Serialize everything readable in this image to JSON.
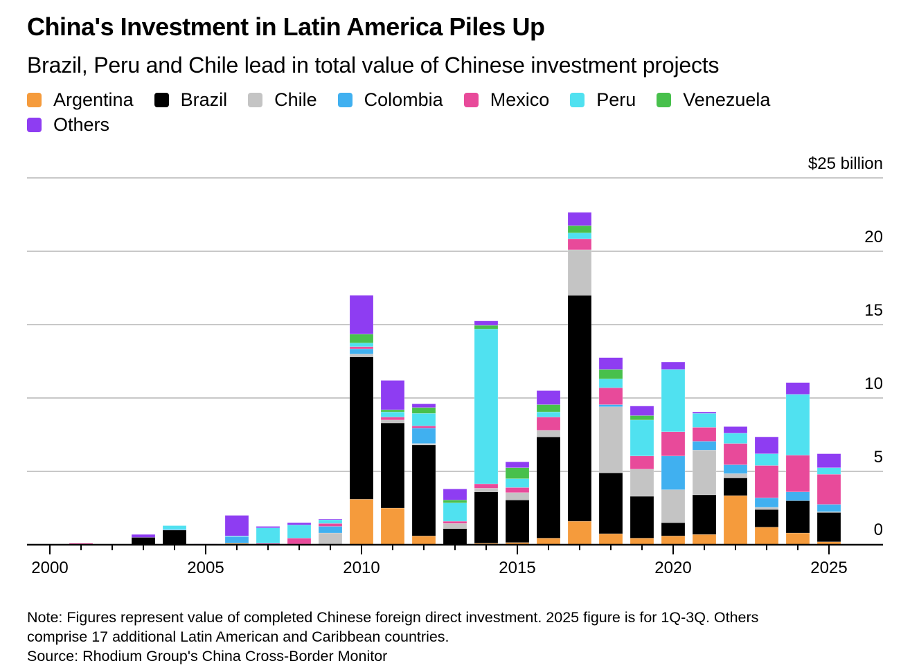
{
  "header": {
    "title": "China's Investment in Latin America Piles Up",
    "subtitle": "Brazil, Peru and Chile lead in total value of Chinese investment projects"
  },
  "footer": {
    "note_line1": "Note: Figures represent value of completed Chinese foreign direct investment. 2025 figure is for 1Q-3Q. Others",
    "note_line2": "comprise 17 additional Latin American and Caribbean countries.",
    "source": "Source: Rhodium Group's China Cross-Border Monitor"
  },
  "chart_data": {
    "type": "bar",
    "stacked": true,
    "title": "China's Investment in Latin America Piles Up",
    "subtitle": "Brazil, Peru and Chile lead in total value of Chinese investment projects",
    "xlabel": "",
    "ylabel": "",
    "y_unit_label": "$25 billion",
    "ylim": [
      0,
      25
    ],
    "yticks": [
      0,
      5,
      10,
      15,
      20,
      25
    ],
    "ytick_labels": [
      "0",
      "5",
      "10",
      "15",
      "20",
      "$25 billion"
    ],
    "xticks_labeled": [
      2000,
      2005,
      2010,
      2015,
      2020,
      2025
    ],
    "grid": true,
    "legend_position": "top-left",
    "categories": [
      2000,
      2001,
      2002,
      2003,
      2004,
      2005,
      2006,
      2007,
      2008,
      2009,
      2010,
      2011,
      2012,
      2013,
      2014,
      2015,
      2016,
      2017,
      2018,
      2019,
      2020,
      2021,
      2022,
      2023,
      2024,
      2025
    ],
    "series": [
      {
        "name": "Argentina",
        "color": "#f59b3c",
        "values": [
          0,
          0,
          0,
          0,
          0,
          0,
          0.1,
          0,
          0,
          0,
          3.1,
          2.5,
          0.6,
          0,
          0.1,
          0.15,
          0.45,
          1.6,
          0.75,
          0.45,
          0.6,
          0.7,
          3.35,
          1.2,
          0.8,
          0.2
        ]
      },
      {
        "name": "Brazil",
        "color": "#000000",
        "values": [
          0,
          0,
          0,
          0.5,
          1.0,
          0,
          0,
          0,
          0,
          0,
          9.7,
          5.8,
          6.2,
          1.1,
          3.5,
          2.9,
          6.9,
          15.4,
          4.15,
          2.85,
          0.9,
          2.7,
          1.2,
          1.2,
          2.2,
          2.0
        ]
      },
      {
        "name": "Chile",
        "color": "#c4c4c4",
        "values": [
          0,
          0,
          0,
          0,
          0,
          0,
          0,
          0,
          0.05,
          0.8,
          0.2,
          0.2,
          0.1,
          0.35,
          0.25,
          0.5,
          0.45,
          3.1,
          4.5,
          1.85,
          2.25,
          3.05,
          0.3,
          0.15,
          0,
          0.05
        ]
      },
      {
        "name": "Colombia",
        "color": "#40b0f0",
        "values": [
          0,
          0,
          0,
          0,
          0.05,
          0,
          0.45,
          0,
          0,
          0.45,
          0.35,
          0,
          1.05,
          0,
          0,
          0,
          0,
          0,
          0.15,
          0,
          2.3,
          0.6,
          0.6,
          0.65,
          0.6,
          0.5
        ]
      },
      {
        "name": "Mexico",
        "color": "#e84a9a",
        "values": [
          0,
          0.1,
          0,
          0,
          0,
          0,
          0,
          0.1,
          0.4,
          0.2,
          0.15,
          0.2,
          0.15,
          0.15,
          0.3,
          0.35,
          0.9,
          0.75,
          1.15,
          0.9,
          1.65,
          0.95,
          1.45,
          2.2,
          2.5,
          2.05
        ]
      },
      {
        "name": "Peru",
        "color": "#50e1f0",
        "values": [
          0,
          0,
          0,
          0,
          0.25,
          0,
          0.05,
          1.05,
          0.9,
          0.25,
          0.25,
          0.35,
          0.85,
          1.25,
          10.55,
          0.6,
          0.35,
          0.4,
          0.6,
          2.45,
          4.25,
          0.95,
          0.7,
          0.8,
          4.15,
          0.45
        ]
      },
      {
        "name": "Venezuela",
        "color": "#48c04c",
        "values": [
          0,
          0,
          0,
          0,
          0,
          0,
          0,
          0,
          0,
          0,
          0.6,
          0.15,
          0.4,
          0.2,
          0.25,
          0.75,
          0.5,
          0.5,
          0.65,
          0.3,
          0,
          0,
          0,
          0,
          0,
          0
        ]
      },
      {
        "name": "Others",
        "color": "#8e3df2",
        "values": [
          0,
          0,
          0,
          0.2,
          0,
          0.05,
          1.4,
          0.1,
          0.15,
          0.05,
          2.65,
          2.0,
          0.25,
          0.75,
          0.3,
          0.4,
          0.95,
          0.9,
          0.8,
          0.65,
          0.5,
          0.1,
          0.45,
          1.15,
          0.8,
          0.95
        ]
      }
    ]
  }
}
